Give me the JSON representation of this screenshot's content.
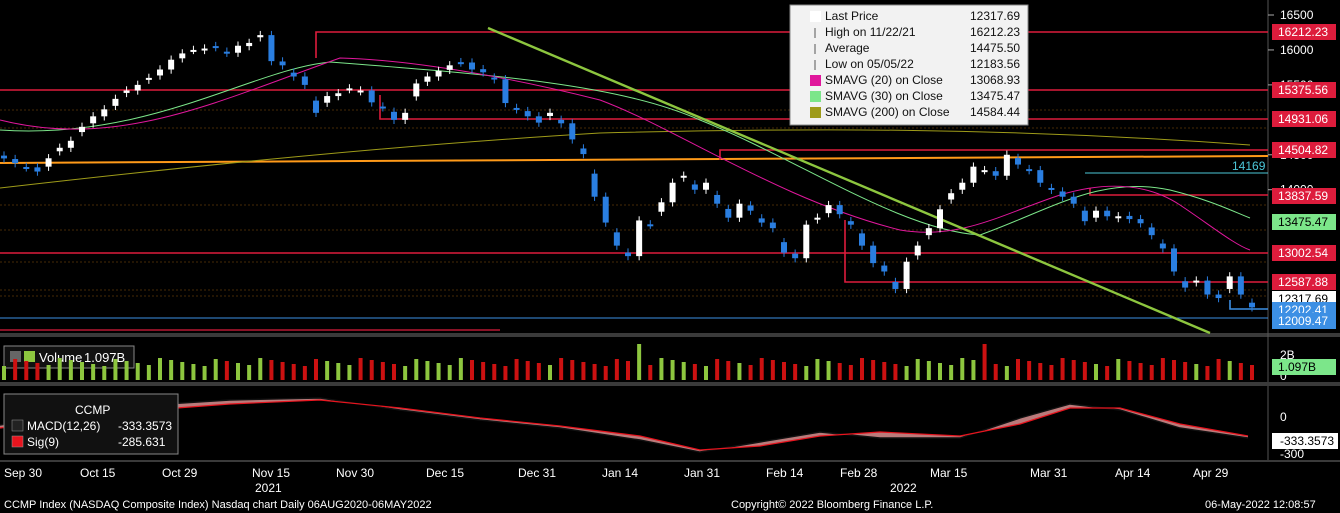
{
  "chart_data": [
    {
      "type": "candlestick",
      "title": "CCMP Index (NASDAQ Composite Index) Nasdaq chart",
      "x_tick_labels": [
        "Sep 30",
        "Oct 15",
        "Oct 29",
        "Nov 15",
        "Nov 30",
        "Dec 15",
        "Dec 31",
        "Jan 14",
        "Jan 31",
        "Feb 14",
        "Feb 28",
        "Mar 15",
        "Mar 31",
        "Apr 14",
        "Apr 29"
      ],
      "x_year_labels": [
        "2021",
        "2022"
      ],
      "y_ticks": [
        16500,
        16000,
        15500,
        14500,
        14000
      ],
      "ylim": [
        11950,
        16600
      ],
      "close_series": [
        14448,
        14380,
        14320,
        14260,
        14450,
        14600,
        14700,
        14900,
        15050,
        15150,
        15300,
        15420,
        15500,
        15600,
        15720,
        15860,
        15950,
        16000,
        16020,
        16040,
        15960,
        16060,
        16100,
        16212,
        15840,
        15780,
        15620,
        15500,
        15100,
        15340,
        15380,
        15450,
        15420,
        15250,
        15180,
        15000,
        15100,
        15520,
        15620,
        15700,
        15780,
        15820,
        15720,
        15680,
        15580,
        15240,
        15150,
        15050,
        14960,
        15100,
        14950,
        14720,
        14510,
        13900,
        13530,
        13200,
        13050,
        13560,
        13500,
        13820,
        14100,
        14200,
        14000,
        14100,
        13800,
        13600,
        13800,
        13700,
        13530,
        13450,
        13100,
        13020,
        13500,
        13600,
        13780,
        13650,
        13500,
        13200,
        12950,
        12830,
        12580,
        12970,
        13200,
        13450,
        13720,
        13950,
        14100,
        14330,
        14280,
        14200,
        14500,
        14360,
        14280,
        14100,
        14000,
        13900,
        13800,
        13550,
        13700,
        13620,
        13620,
        13580,
        13520,
        13350,
        13160,
        12830,
        12600,
        12700,
        12500,
        12450,
        12760,
        12500,
        12317
      ],
      "series": [
        {
          "name": "Last Price",
          "value": "12317.69",
          "color": "#ffffff",
          "label_text": "12317.69"
        },
        {
          "name": "High on 11/22/21",
          "value": "16212.23",
          "color": "#dd1c3c",
          "label_text": "16212.23"
        },
        {
          "name": "Average",
          "value": "14475.50",
          "color": "#d4d4d4",
          "label_text": ""
        },
        {
          "name": "Low on 05/05/22",
          "value": "12183.56",
          "color": "#3c8fe4",
          "label_text": ""
        },
        {
          "name": "SMAVG (20)  on Close",
          "value": "13068.93",
          "color": "#e0179c",
          "label_text": ""
        },
        {
          "name": "SMAVG (30)  on Close",
          "value": "13475.47",
          "color": "#7ce68a",
          "label_text": "13475.47"
        },
        {
          "name": "SMAVG (200)  on Close",
          "value": "14584.44",
          "color": "#9e9b19",
          "label_text": ""
        }
      ],
      "resistance_levels": [
        "16212.23",
        "15375.56",
        "14931.06",
        "14504.82",
        "13837.59",
        "13002.54",
        "12587.88"
      ],
      "level_14169": "14169",
      "low_level_label": "12202.41",
      "bottom_label": "12009.47",
      "level_12317_partial": "12317.69"
    },
    {
      "type": "bar",
      "title": "Volume",
      "legend_value": "1.097B",
      "y_tick": "2B",
      "y_tick_zero": "0",
      "last_value_label": "1.097B"
    },
    {
      "type": "line",
      "title": "CCMP",
      "series": [
        {
          "name": "MACD(12,26)",
          "value": "-333.3573",
          "color": "#111111"
        },
        {
          "name": "Sig(9)",
          "value": "-285.631",
          "color": "#e8141e"
        }
      ],
      "y_tick_zero": "0",
      "y_tick_low": "-300",
      "last_value_label": "-333.3573"
    }
  ],
  "footer": {
    "left": "CCMP Index (NASDAQ Composite Index) Nasdaq chart  Daily 06AUG2020-06MAY2022",
    "center": "Copyright© 2022 Bloomberg Finance L.P.",
    "right": "06-May-2022 12:08:57"
  },
  "colors": {
    "background": "#000000",
    "up_candle": "#ffffff",
    "down_candle": "#2a7ee0",
    "resistance": "#dd1c3c",
    "trendline": "#8dc63f",
    "horizontal": "#ff9a19",
    "volume_up": "#8dc63f",
    "volume_down": "#cc1111"
  }
}
